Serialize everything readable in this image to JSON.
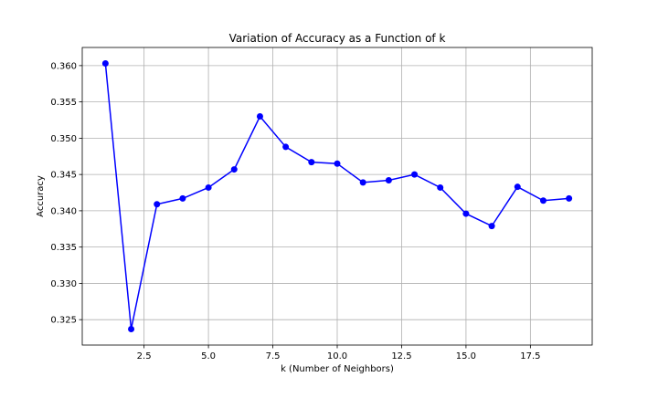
{
  "chart_data": {
    "type": "line",
    "title": "Variation of Accuracy as a Function of k",
    "xlabel": "k (Number of Neighbors)",
    "ylabel": "Accuracy",
    "xlim": [
      0.1,
      19.9
    ],
    "ylim": [
      0.3215,
      0.3625
    ],
    "xticks": [
      2.5,
      5.0,
      7.5,
      10.0,
      12.5,
      15.0,
      17.5
    ],
    "xtick_labels": [
      "2.5",
      "5.0",
      "7.5",
      "10.0",
      "12.5",
      "15.0",
      "17.5"
    ],
    "yticks": [
      0.325,
      0.33,
      0.335,
      0.34,
      0.345,
      0.35,
      0.355,
      0.36
    ],
    "ytick_labels": [
      "0.325",
      "0.330",
      "0.335",
      "0.340",
      "0.345",
      "0.350",
      "0.355",
      "0.360"
    ],
    "grid": true,
    "legend": "none",
    "color": "#0000ff",
    "x": [
      1,
      2,
      3,
      4,
      5,
      6,
      7,
      8,
      9,
      10,
      11,
      12,
      13,
      14,
      15,
      16,
      17,
      18,
      19
    ],
    "series": [
      {
        "values": [
          0.3603,
          0.3237,
          0.3409,
          0.3417,
          0.3432,
          0.3457,
          0.353,
          0.3488,
          0.3467,
          0.3465,
          0.3439,
          0.3442,
          0.345,
          0.3432,
          0.3396,
          0.3379,
          0.3433,
          0.3414,
          0.3417
        ]
      }
    ]
  }
}
